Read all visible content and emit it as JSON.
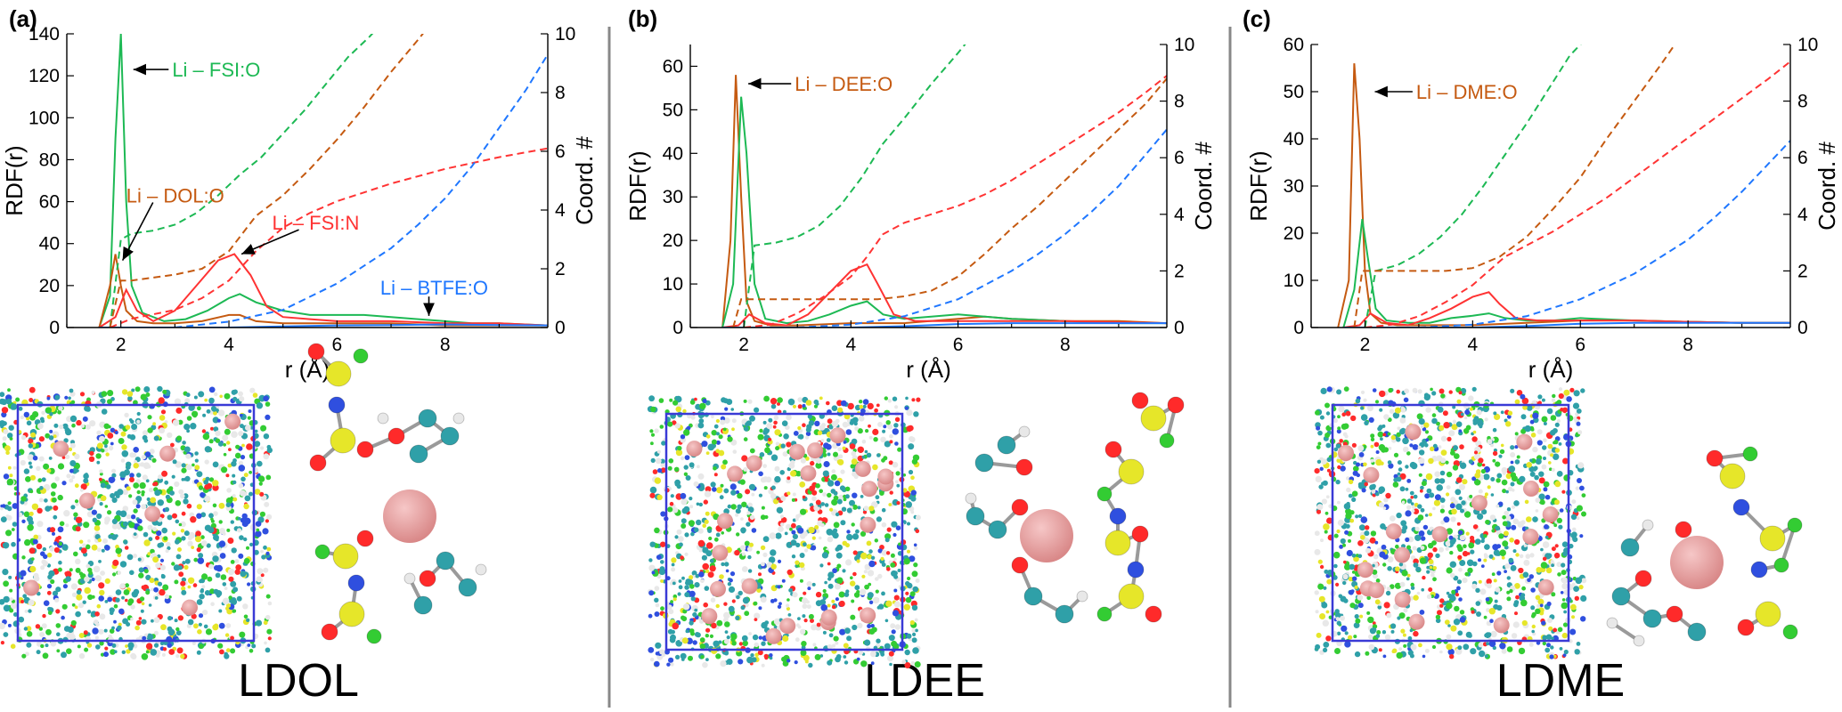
{
  "chart_data": [
    {
      "panel_label": "(a)",
      "system": "LDOL",
      "type": "line",
      "xlabel": "r (Å)",
      "ylabel": "RDF(r)",
      "y2label": "Coord. #",
      "xlim": [
        1,
        9.9
      ],
      "ylim": [
        0,
        140
      ],
      "y2lim": [
        0,
        10
      ],
      "xticks": [
        2,
        4,
        6,
        8
      ],
      "yticks": [
        0,
        20,
        40,
        60,
        80,
        100,
        120,
        140
      ],
      "y2ticks": [
        0,
        2,
        4,
        6,
        8,
        10
      ],
      "series": [
        {
          "id": "li_fsi_o",
          "color": "#1db954",
          "style": "solid",
          "axis": "left",
          "x": [
            1.6,
            1.8,
            1.9,
            2.0,
            2.1,
            2.2,
            2.4,
            2.8,
            3.2,
            3.6,
            4.0,
            4.2,
            4.5,
            5.0,
            5.5,
            6.0,
            6.5,
            7.0,
            7.5,
            8.0,
            8.5,
            9.0,
            9.9
          ],
          "y": [
            0,
            15,
            90,
            140,
            60,
            20,
            7,
            3,
            4,
            8,
            14,
            16,
            12,
            8,
            6,
            6,
            6,
            5,
            4,
            3,
            2,
            2,
            1
          ]
        },
        {
          "id": "li_dol_o",
          "color": "#c55a11",
          "style": "solid",
          "axis": "left",
          "x": [
            1.6,
            1.8,
            1.9,
            2.0,
            2.1,
            2.3,
            2.6,
            3.0,
            3.5,
            4.0,
            4.2,
            4.5,
            5.0,
            6.0,
            7.0,
            8.0,
            9.0,
            9.9
          ],
          "y": [
            0,
            20,
            35,
            20,
            8,
            3,
            2,
            2,
            3,
            6,
            6,
            3,
            2,
            2,
            2,
            1,
            1,
            1
          ]
        },
        {
          "id": "li_fsi_n",
          "color": "#ff3333",
          "style": "solid",
          "axis": "left",
          "x": [
            1.6,
            1.9,
            2.1,
            2.3,
            2.6,
            3.0,
            3.4,
            3.8,
            4.1,
            4.4,
            4.7,
            5.0,
            5.5,
            6.0,
            7.0,
            8.0,
            9.0,
            9.9
          ],
          "y": [
            0,
            5,
            18,
            8,
            3,
            8,
            20,
            32,
            35,
            25,
            10,
            5,
            4,
            3,
            3,
            2,
            2,
            1
          ]
        },
        {
          "id": "li_btfe_o",
          "color": "#1f77ff",
          "style": "solid",
          "axis": "left",
          "x": [
            1.6,
            3.0,
            4.0,
            5.0,
            6.0,
            7.0,
            8.0,
            9.0,
            9.9
          ],
          "y": [
            0,
            0,
            0,
            0.5,
            1,
            1.2,
            1.5,
            1.2,
            1
          ]
        },
        {
          "id": "cn_fsi_o",
          "color": "#1db954",
          "style": "dashed",
          "axis": "right",
          "x": [
            1.8,
            2.0,
            2.2,
            2.6,
            3.0,
            3.4,
            3.8,
            4.2,
            4.6,
            5.0,
            5.4,
            5.8,
            6.2,
            6.6,
            6.9
          ],
          "y": [
            0,
            3.0,
            3.2,
            3.3,
            3.5,
            3.9,
            4.5,
            5.2,
            5.8,
            6.6,
            7.4,
            8.3,
            9.2,
            9.9,
            10.5
          ]
        },
        {
          "id": "cn_dol_o",
          "color": "#c55a11",
          "style": "dashed",
          "axis": "right",
          "x": [
            1.8,
            2.0,
            2.2,
            2.6,
            3.0,
            3.5,
            4.0,
            4.5,
            5.0,
            5.5,
            6.0,
            6.5,
            7.0,
            7.5,
            7.8
          ],
          "y": [
            0,
            1.6,
            1.6,
            1.7,
            1.8,
            2.0,
            2.6,
            3.8,
            4.5,
            5.4,
            6.4,
            7.5,
            8.7,
            9.8,
            10.5
          ]
        },
        {
          "id": "cn_fsi_n",
          "color": "#ff3333",
          "style": "dashed",
          "axis": "right",
          "x": [
            1.8,
            2.2,
            3.0,
            3.5,
            4.0,
            4.5,
            5.0,
            5.5,
            6.0,
            7.0,
            8.0,
            9.0,
            9.9
          ],
          "y": [
            0,
            0.3,
            0.6,
            1.0,
            1.6,
            2.6,
            3.4,
            3.9,
            4.3,
            4.9,
            5.4,
            5.8,
            6.1
          ]
        },
        {
          "id": "cn_btfe_o",
          "color": "#1f77ff",
          "style": "dashed",
          "axis": "right",
          "x": [
            3.0,
            4.0,
            5.0,
            6.0,
            7.0,
            7.5,
            8.0,
            8.5,
            9.0,
            9.5,
            9.9
          ],
          "y": [
            0,
            0.2,
            0.6,
            1.5,
            2.7,
            3.5,
            4.4,
            5.5,
            6.8,
            8.1,
            9.3
          ]
        }
      ],
      "annotations": [
        {
          "text": "Li – FSI:O",
          "color": "#1db954",
          "tx": 2.95,
          "ty": 123,
          "ax": 2.1,
          "ay": 123,
          "anchor": "start"
        },
        {
          "text": "Li – DOL:O",
          "color": "#c55a11",
          "tx": 2.1,
          "ty": 63,
          "ax": 1.9,
          "ay": 32,
          "anchor": "start"
        },
        {
          "text": "Li – FSI:N",
          "color": "#ff3333",
          "tx": 4.8,
          "ty": 50,
          "ax": 4.1,
          "ay": 35,
          "anchor": "start"
        },
        {
          "text": "Li – BTFE:O",
          "color": "#1f77ff",
          "tx": 6.8,
          "ty": 19,
          "ax": 7.7,
          "ay": 3,
          "anchor": "start"
        }
      ]
    },
    {
      "panel_label": "(b)",
      "system": "LDEE",
      "type": "line",
      "xlabel": "r (Å)",
      "ylabel": "RDF(r)",
      "y2label": "Coord. #",
      "xlim": [
        1,
        9.9
      ],
      "ylim": [
        0,
        65
      ],
      "y2lim": [
        0,
        10
      ],
      "xticks": [
        2,
        4,
        6,
        8
      ],
      "yticks": [
        0,
        10,
        20,
        30,
        40,
        50,
        60
      ],
      "y2ticks": [
        0,
        2,
        4,
        6,
        8,
        10
      ],
      "series": [
        {
          "id": "li_dee_o",
          "color": "#c55a11",
          "style": "solid",
          "axis": "left",
          "x": [
            1.6,
            1.75,
            1.85,
            1.95,
            2.05,
            2.2,
            2.5,
            3.0,
            4.0,
            5.0,
            6.0,
            6.5,
            7.0,
            8.0,
            9.0,
            9.9
          ],
          "y": [
            0,
            20,
            58,
            30,
            6,
            1.5,
            0.5,
            0.5,
            1,
            1,
            2,
            2.5,
            2,
            1.5,
            1.5,
            1
          ]
        },
        {
          "id": "li_fsi_o",
          "color": "#1db954",
          "style": "solid",
          "axis": "left",
          "x": [
            1.6,
            1.8,
            1.95,
            2.05,
            2.2,
            2.4,
            2.8,
            3.2,
            3.6,
            4.0,
            4.3,
            4.6,
            5.0,
            5.5,
            6.0,
            6.5,
            7.0,
            8.0,
            9.0,
            9.9
          ],
          "y": [
            0,
            10,
            53,
            40,
            10,
            2,
            1,
            1.5,
            3,
            5,
            6,
            3,
            2,
            2.5,
            3,
            2.5,
            2,
            1.5,
            1,
            1
          ]
        },
        {
          "id": "li_fsi_n",
          "color": "#ff3333",
          "style": "solid",
          "axis": "left",
          "x": [
            1.6,
            1.9,
            2.1,
            2.4,
            2.8,
            3.2,
            3.6,
            4.0,
            4.3,
            4.5,
            4.8,
            5.2,
            6.0,
            7.0,
            8.0,
            9.0,
            9.9
          ],
          "y": [
            0,
            0.5,
            3,
            1,
            0.5,
            3,
            8,
            13,
            14.5,
            10,
            3,
            1.5,
            1.5,
            1.5,
            1.5,
            1.2,
            1
          ]
        },
        {
          "id": "li_btfe_o",
          "color": "#1f77ff",
          "style": "solid",
          "axis": "left",
          "x": [
            1.6,
            3.0,
            4.0,
            5.0,
            6.0,
            7.0,
            8.0,
            9.0,
            9.9
          ],
          "y": [
            0,
            0,
            0,
            0.3,
            0.8,
            1,
            1,
            1,
            1
          ]
        },
        {
          "id": "cn_fsi_o",
          "color": "#1db954",
          "style": "dashed",
          "axis": "right",
          "x": [
            2.0,
            2.2,
            2.6,
            3.0,
            3.4,
            3.8,
            4.2,
            4.6,
            5.0,
            5.5,
            6.0,
            6.3
          ],
          "y": [
            0,
            2.9,
            3.0,
            3.2,
            3.6,
            4.3,
            5.3,
            6.5,
            7.4,
            8.6,
            9.7,
            10.4
          ]
        },
        {
          "id": "cn_dee_o",
          "color": "#c55a11",
          "style": "dashed",
          "axis": "right",
          "x": [
            1.8,
            1.95,
            2.2,
            2.6,
            3.0,
            3.5,
            4.0,
            4.5,
            5.0,
            5.5,
            6.0,
            6.5,
            7.0,
            7.5,
            8.0,
            8.5,
            9.0,
            9.5,
            9.9
          ],
          "y": [
            0,
            1.0,
            1.0,
            1.0,
            1.0,
            1.0,
            1.0,
            1.0,
            1.1,
            1.3,
            1.8,
            2.6,
            3.5,
            4.3,
            5.2,
            6.1,
            7.0,
            7.9,
            8.8
          ]
        },
        {
          "id": "cn_fsi_n",
          "color": "#ff3333",
          "style": "dashed",
          "axis": "right",
          "x": [
            2.0,
            2.5,
            3.0,
            3.5,
            4.0,
            4.3,
            4.6,
            5.0,
            5.5,
            6.0,
            6.5,
            7.0,
            7.5,
            8.0,
            8.5,
            9.0,
            9.5,
            9.9
          ],
          "y": [
            0,
            0.1,
            0.5,
            1.1,
            1.8,
            2.5,
            3.3,
            3.7,
            4.0,
            4.3,
            4.7,
            5.2,
            5.8,
            6.4,
            7.0,
            7.6,
            8.3,
            8.9
          ]
        },
        {
          "id": "cn_btfe_o",
          "color": "#1f77ff",
          "style": "dashed",
          "axis": "right",
          "x": [
            3.0,
            4.0,
            5.0,
            6.0,
            7.0,
            7.5,
            8.0,
            8.5,
            9.0,
            9.5,
            9.9
          ],
          "y": [
            0,
            0.1,
            0.4,
            1.0,
            2.0,
            2.6,
            3.3,
            4.1,
            5.0,
            6.1,
            7.0
          ]
        }
      ],
      "annotations": [
        {
          "text": "Li – DEE:O",
          "color": "#c55a11",
          "tx": 2.95,
          "ty": 56,
          "ax": 1.95,
          "ay": 56,
          "anchor": "start"
        }
      ]
    },
    {
      "panel_label": "(c)",
      "system": "LDME",
      "type": "line",
      "xlabel": "r (Å)",
      "ylabel": "RDF(r)",
      "y2label": "Coord. #",
      "xlim": [
        1,
        9.9
      ],
      "ylim": [
        0,
        60
      ],
      "y2lim": [
        0,
        10
      ],
      "xticks": [
        2,
        4,
        6,
        8
      ],
      "yticks": [
        0,
        10,
        20,
        30,
        40,
        50,
        60
      ],
      "y2ticks": [
        0,
        2,
        4,
        6,
        8,
        10
      ],
      "series": [
        {
          "id": "li_dme_o",
          "color": "#c55a11",
          "style": "solid",
          "axis": "left",
          "x": [
            1.5,
            1.7,
            1.8,
            1.9,
            2.0,
            2.1,
            2.3,
            2.6,
            3.0,
            4.0,
            5.0,
            6.0,
            7.0,
            8.0,
            9.0,
            9.9
          ],
          "y": [
            0,
            10,
            56,
            40,
            12,
            3,
            1,
            0.5,
            0.5,
            0.5,
            1,
            1.5,
            1.5,
            1.2,
            1,
            1
          ]
        },
        {
          "id": "li_fsi_o",
          "color": "#1db954",
          "style": "solid",
          "axis": "left",
          "x": [
            1.6,
            1.8,
            1.95,
            2.05,
            2.2,
            2.4,
            2.8,
            3.2,
            3.6,
            4.0,
            4.3,
            4.6,
            5.0,
            5.5,
            6.0,
            7.0,
            8.0,
            9.0,
            9.9
          ],
          "y": [
            0,
            8,
            23,
            15,
            4,
            1.5,
            1,
            1,
            2,
            2.5,
            3,
            2,
            1.5,
            1.5,
            2,
            1.5,
            1.2,
            1,
            1
          ]
        },
        {
          "id": "li_fsi_n",
          "color": "#ff3333",
          "style": "solid",
          "axis": "left",
          "x": [
            1.6,
            1.9,
            2.1,
            2.4,
            2.8,
            3.2,
            3.6,
            4.0,
            4.3,
            4.5,
            4.8,
            5.2,
            6.0,
            7.0,
            8.0,
            9.0,
            9.9
          ],
          "y": [
            0,
            0.5,
            3,
            1,
            0.5,
            2,
            4,
            6.5,
            7.5,
            5,
            2,
            1.5,
            1.5,
            1.5,
            1.2,
            1,
            1
          ]
        },
        {
          "id": "li_btfe_o",
          "color": "#1f77ff",
          "style": "solid",
          "axis": "left",
          "x": [
            1.6,
            3.0,
            4.0,
            5.0,
            6.0,
            7.0,
            8.0,
            9.0,
            9.9
          ],
          "y": [
            0,
            0,
            0,
            0.3,
            0.8,
            1,
            1,
            1,
            1
          ]
        },
        {
          "id": "cn_fsi_o",
          "color": "#1db954",
          "style": "dashed",
          "axis": "right",
          "x": [
            2.0,
            2.2,
            2.6,
            3.0,
            3.4,
            3.8,
            4.2,
            4.6,
            5.0,
            5.4,
            5.8,
            6.2
          ],
          "y": [
            0,
            2.0,
            2.2,
            2.6,
            3.2,
            4.0,
            5.0,
            6.1,
            7.2,
            8.4,
            9.6,
            10.4
          ]
        },
        {
          "id": "cn_dme_o",
          "color": "#c55a11",
          "style": "dashed",
          "axis": "right",
          "x": [
            1.8,
            1.95,
            2.2,
            2.6,
            3.0,
            3.5,
            4.0,
            4.5,
            5.0,
            5.5,
            6.0,
            6.5,
            7.0,
            7.5,
            7.9
          ],
          "y": [
            0,
            2.0,
            2.0,
            2.0,
            2.0,
            2.0,
            2.1,
            2.5,
            3.2,
            4.2,
            5.3,
            6.7,
            8.0,
            9.3,
            10.4
          ]
        },
        {
          "id": "cn_fsi_n",
          "color": "#ff3333",
          "style": "dashed",
          "axis": "right",
          "x": [
            2.0,
            2.5,
            3.0,
            3.5,
            4.0,
            4.3,
            4.6,
            5.0,
            5.5,
            6.0,
            6.5,
            7.0,
            7.5,
            8.0,
            8.5,
            9.0,
            9.5,
            9.9
          ],
          "y": [
            0,
            0.1,
            0.4,
            0.9,
            1.5,
            2.0,
            2.5,
            2.9,
            3.4,
            4.0,
            4.6,
            5.3,
            6.0,
            6.7,
            7.4,
            8.1,
            8.8,
            9.4
          ]
        },
        {
          "id": "cn_btfe_o",
          "color": "#1f77ff",
          "style": "dashed",
          "axis": "right",
          "x": [
            3.0,
            4.0,
            5.0,
            6.0,
            7.0,
            7.5,
            8.0,
            8.5,
            9.0,
            9.5,
            9.9
          ],
          "y": [
            0,
            0.1,
            0.4,
            1.0,
            1.9,
            2.5,
            3.1,
            3.9,
            4.8,
            5.8,
            6.6
          ]
        }
      ],
      "annotations": [
        {
          "text": "Li – DME:O",
          "color": "#c55a11",
          "tx": 2.95,
          "ty": 50,
          "ax": 2.05,
          "ay": 50,
          "anchor": "start"
        }
      ]
    }
  ]
}
